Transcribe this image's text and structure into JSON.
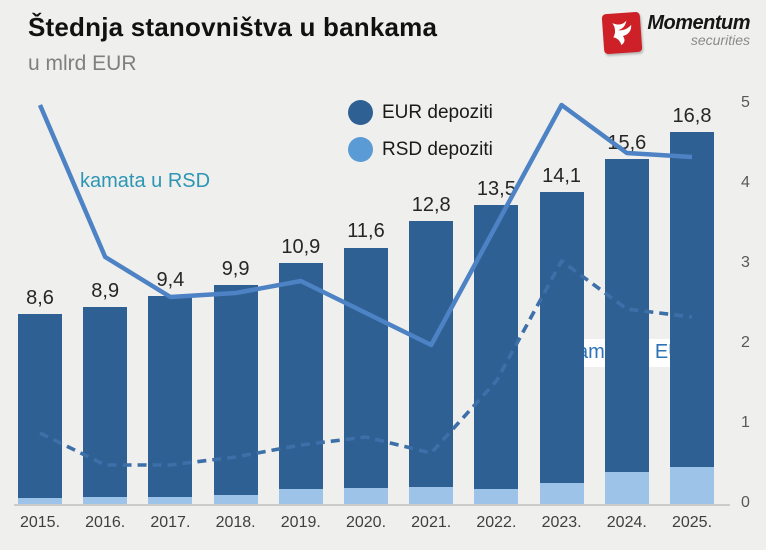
{
  "header": {
    "title": "Štednja stanovništva u bankama",
    "subtitle": "u mlrd EUR",
    "logo": {
      "brand": "Momentum",
      "brand_sub": "securities"
    }
  },
  "legend": {
    "eur_label": "EUR depoziti",
    "rsd_label": "RSD depoziti"
  },
  "annotations": {
    "rsd_line_label": "kamata u RSD",
    "eur_line_label": "kamata u EUR"
  },
  "colors": {
    "background": "#efefed",
    "eur_bar": "#2e6094",
    "rsd_bar": "#9dc3e8",
    "legend_eur": "#2e6094",
    "legend_rsd": "#5b9bd5",
    "rsd_line": "#4d82c4",
    "eur_line": "#3d6fa8",
    "rsd_line_label_color": "#2d96b4",
    "eur_line_label_color": "#2e74b5",
    "brand_red": "#cd2027"
  },
  "chart_data": {
    "type": "bar",
    "subtype": "stacked bars with two overlay lines",
    "title": "Štednja stanovništva u bankama",
    "subtitle_units": "u mlrd EUR",
    "categories": [
      "2015.",
      "2016.",
      "2017.",
      "2018.",
      "2019.",
      "2020.",
      "2021.",
      "2022.",
      "2023.",
      "2024.",
      "2025."
    ],
    "totals": [
      8.6,
      8.9,
      9.4,
      9.9,
      10.9,
      11.6,
      12.8,
      13.5,
      14.1,
      15.6,
      16.8
    ],
    "total_labels": [
      "8,6",
      "8,9",
      "9,4",
      "9,9",
      "10,9",
      "11,6",
      "12,8",
      "13,5",
      "14,1",
      "15,6",
      "16,8"
    ],
    "bar_series": [
      {
        "name": "EUR depoziti",
        "values": [
          8.3,
          8.55,
          9.05,
          9.45,
          10.2,
          10.85,
          12.0,
          12.8,
          13.1,
          14.1,
          15.1
        ]
      },
      {
        "name": "RSD depoziti",
        "values": [
          0.3,
          0.35,
          0.35,
          0.45,
          0.7,
          0.75,
          0.8,
          0.7,
          1.0,
          1.5,
          1.7
        ]
      }
    ],
    "line_series": [
      {
        "name": "kamata u RSD",
        "style": "solid",
        "values": [
          5.0,
          3.1,
          2.6,
          2.65,
          2.8,
          2.4,
          2.0,
          3.5,
          5.0,
          4.4,
          4.35
        ]
      },
      {
        "name": "kamata u EUR",
        "style": "dashed",
        "values": [
          0.9,
          0.5,
          0.5,
          0.6,
          0.75,
          0.85,
          0.65,
          1.55,
          3.05,
          2.45,
          2.35
        ]
      }
    ],
    "right_axis": {
      "ticks": [
        "5",
        "4",
        "3",
        "2",
        "1",
        "0"
      ],
      "tick_values": [
        5,
        4,
        3,
        2,
        1,
        0
      ],
      "range": [
        0,
        5
      ]
    },
    "left_axis_visible": false,
    "grid": false,
    "legend_position": "top-center",
    "bar_value_labels_shown": true
  }
}
